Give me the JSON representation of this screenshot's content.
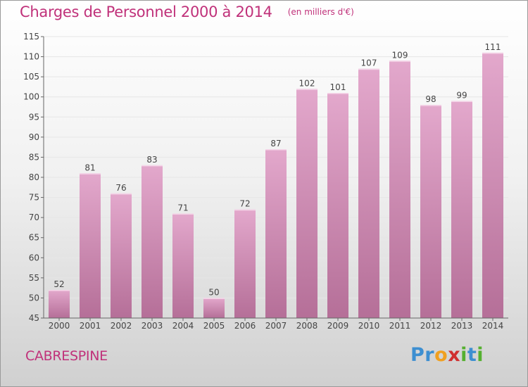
{
  "chart_data": {
    "type": "bar",
    "title": "Charges de Personnel 2000 à 2014",
    "subtitle": "(en milliers d'€)",
    "categories": [
      "2000",
      "2001",
      "2002",
      "2003",
      "2004",
      "2005",
      "2006",
      "2007",
      "2008",
      "2009",
      "2010",
      "2011",
      "2012",
      "2013",
      "2014"
    ],
    "values": [
      52,
      81,
      76,
      83,
      71,
      50,
      72,
      87,
      102,
      101,
      107,
      109,
      98,
      99,
      111
    ],
    "ylim": [
      45,
      115
    ],
    "yticks": [
      45,
      50,
      55,
      60,
      65,
      70,
      75,
      80,
      85,
      90,
      95,
      100,
      105,
      110,
      115
    ],
    "xlabel": "",
    "ylabel": "",
    "grid": true,
    "data_labels": true,
    "bar_color_top": "#e3a8cc",
    "bar_color_bottom": "#b56f98"
  },
  "footer": {
    "commune": "CABRESPINE"
  },
  "logo": {
    "letters": [
      {
        "ch": "P",
        "color": "#3d8fd1"
      },
      {
        "ch": "r",
        "color": "#3d8fd1"
      },
      {
        "ch": "o",
        "color": "#f0a020"
      },
      {
        "ch": "x",
        "color": "#d03030"
      },
      {
        "ch": "i",
        "color": "#55b030"
      },
      {
        "ch": "t",
        "color": "#3d8fd1"
      },
      {
        "ch": "i",
        "color": "#55b030"
      }
    ]
  }
}
